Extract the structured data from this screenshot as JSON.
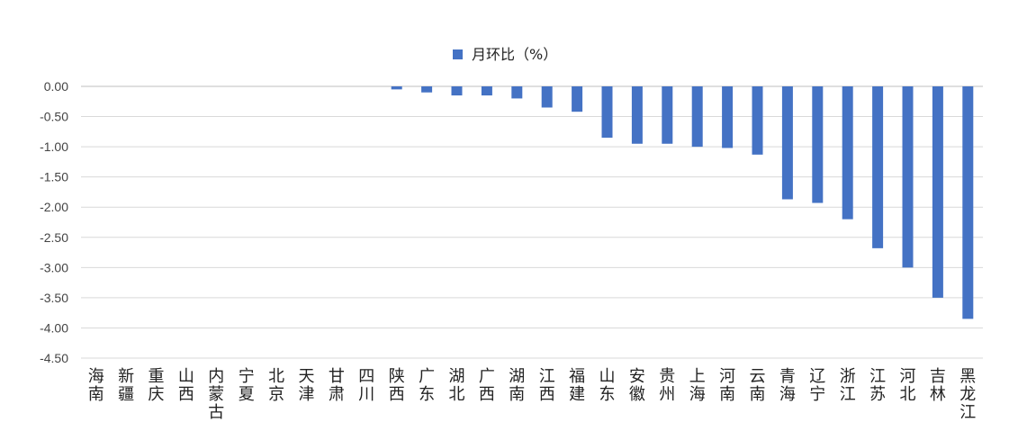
{
  "chart_data": {
    "type": "bar",
    "legend": "月环比（%）",
    "legend_position": "top-center",
    "grid": true,
    "ylim": [
      -4.5,
      0
    ],
    "yticks": [
      "0.00",
      "-0.50",
      "-1.00",
      "-1.50",
      "-2.00",
      "-2.50",
      "-3.00",
      "-3.50",
      "-4.00",
      "-4.50"
    ],
    "categories": [
      "海南",
      "新疆",
      "重庆",
      "山西",
      "内蒙古",
      "宁夏",
      "北京",
      "天津",
      "甘肃",
      "四川",
      "陕西",
      "广东",
      "湖北",
      "广西",
      "湖南",
      "江西",
      "福建",
      "山东",
      "安徽",
      "贵州",
      "上海",
      "河南",
      "云南",
      "青海",
      "辽宁",
      "浙江",
      "江苏",
      "河北",
      "吉林",
      "黑龙江"
    ],
    "series": [
      {
        "name": "月环比（%）",
        "color": "#4472C4",
        "values": [
          0,
          0,
          0,
          0,
          0,
          0,
          0,
          0,
          0,
          0,
          -0.05,
          -0.1,
          -0.15,
          -0.15,
          -0.2,
          -0.35,
          -0.42,
          -0.85,
          -0.95,
          -0.95,
          -1.0,
          -1.02,
          -1.13,
          -1.87,
          -1.93,
          -2.2,
          -2.68,
          -3.0,
          -3.5,
          -3.85
        ]
      }
    ]
  }
}
